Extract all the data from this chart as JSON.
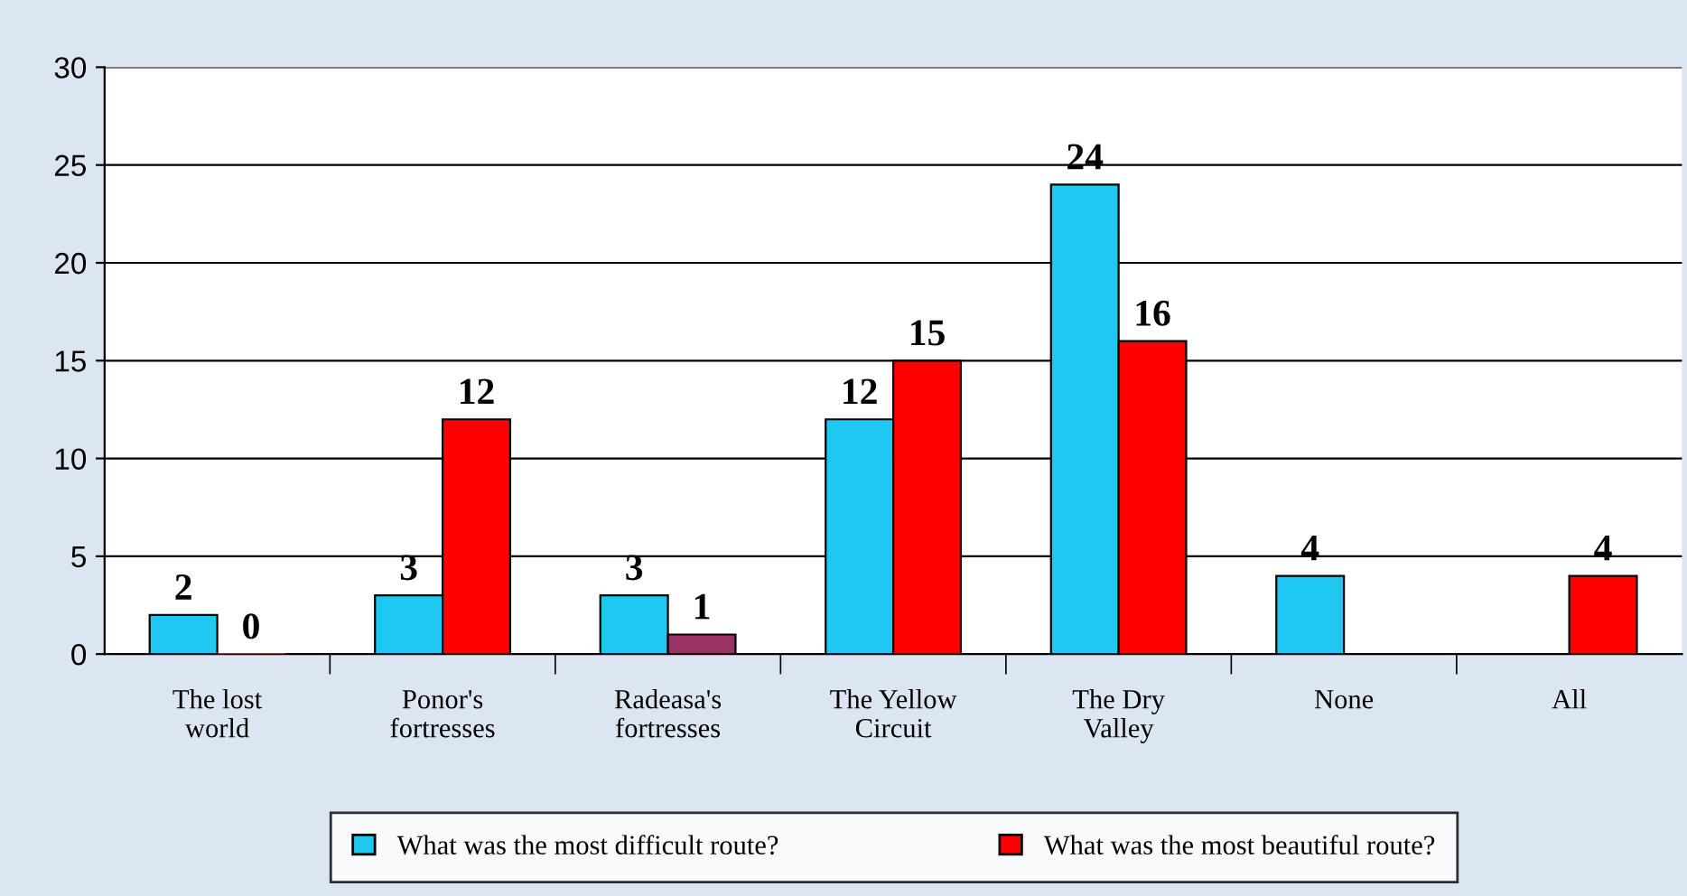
{
  "chart_data": {
    "type": "bar",
    "categories": [
      "The lost\nworld",
      "Ponor's\nfortresses",
      "Radeasa's\nfortresses",
      "The Yellow\nCircuit",
      "The Dry\nValley",
      "None",
      "All"
    ],
    "series": [
      {
        "name": "What was the most difficult route?",
        "color": "#1ec8f0",
        "values": [
          2,
          3,
          3,
          12,
          24,
          4,
          null
        ]
      },
      {
        "name": "What was the most beautiful route?",
        "color": "#ff0000",
        "colors": [
          "#ff0000",
          "#ff0000",
          "#993366",
          "#ff0000",
          "#ff0000",
          "#ff0000",
          "#ff0000"
        ],
        "values": [
          0,
          12,
          1,
          15,
          16,
          null,
          4
        ]
      }
    ],
    "ylim": [
      0,
      30
    ],
    "yticks": [
      0,
      5,
      10,
      15,
      20,
      25,
      30
    ],
    "grid": "y",
    "data_labels": true,
    "legend": "bottom"
  }
}
